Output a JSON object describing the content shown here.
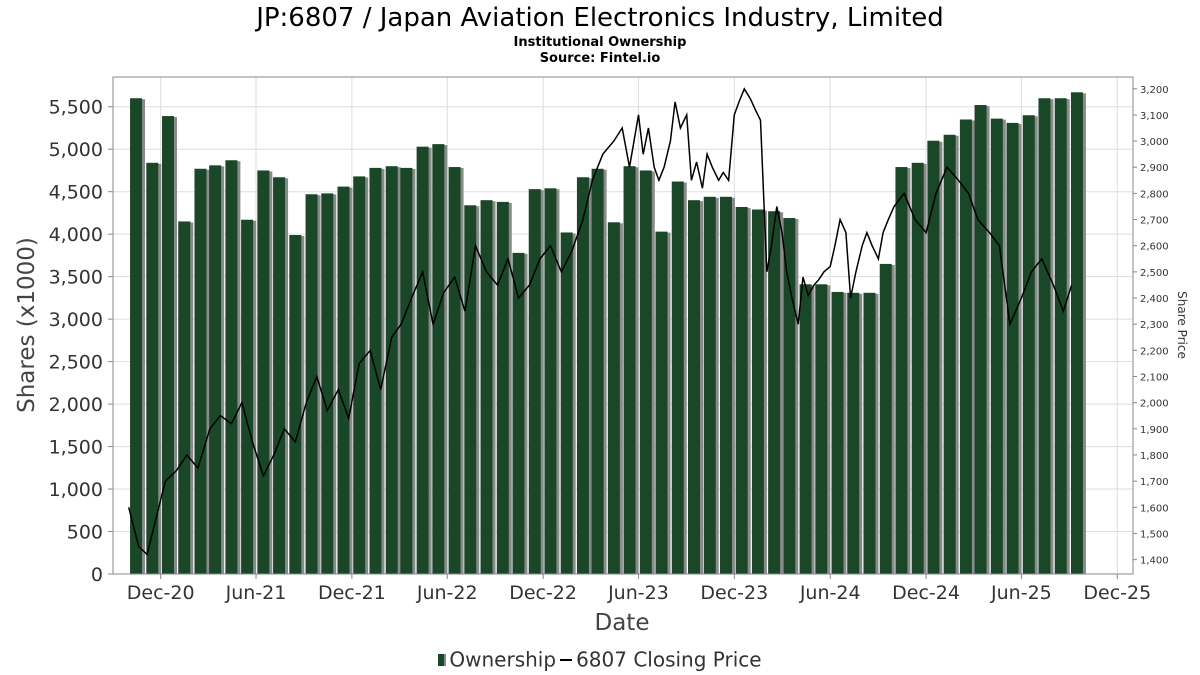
{
  "title": "JP:6807 / Japan Aviation Electronics Industry, Limited",
  "subtitle": "Institutional Ownership",
  "source": "Source: Fintel.io",
  "legend": {
    "ownership": "Ownership",
    "price": "6807 Closing Price"
  },
  "colors": {
    "bar": "#1a4728",
    "bar_shadow": "#8a8a8a",
    "line": "#000000",
    "grid": "#dddddd"
  },
  "chart_data": {
    "type": "bar",
    "xlabel": "Date",
    "ylabel": "Shares (x1000)",
    "y2label": "Share Price",
    "ylim": [
      0,
      5850
    ],
    "y2lim": [
      1345,
      3245
    ],
    "xlim": [
      "2020-09-01",
      "2025-12-31"
    ],
    "grid": true,
    "legend_position": "bottom",
    "yticks": [
      0,
      500,
      1000,
      1500,
      2000,
      2500,
      3000,
      3500,
      4000,
      4500,
      5000,
      5500
    ],
    "ytick_labels": [
      "0",
      "500",
      "1,000",
      "1,500",
      "2,000",
      "2,500",
      "3,000",
      "3,500",
      "4,000",
      "4,500",
      "5,000",
      "5,500"
    ],
    "y2ticks": [
      1400,
      1500,
      1600,
      1700,
      1800,
      1900,
      2000,
      2100,
      2200,
      2300,
      2400,
      2500,
      2600,
      2700,
      2800,
      2900,
      3000,
      3100,
      3200
    ],
    "y2tick_labels": [
      "1,400",
      "1,500",
      "1,600",
      "1,700",
      "1,800",
      "1,900",
      "2,000",
      "2,100",
      "2,200",
      "2,300",
      "2,400",
      "2,500",
      "2,600",
      "2,700",
      "2,800",
      "2,900",
      "3,000",
      "3,100",
      "3,200"
    ],
    "xticks": [
      "2020-12-01",
      "2021-06-01",
      "2021-12-01",
      "2022-06-01",
      "2022-12-01",
      "2023-06-01",
      "2023-12-01",
      "2024-06-01",
      "2024-12-01",
      "2025-06-01",
      "2025-12-01"
    ],
    "xtick_labels": [
      "Dec-20",
      "Jun-21",
      "Dec-21",
      "Jun-22",
      "Dec-22",
      "Jun-23",
      "Dec-23",
      "Jun-24",
      "Dec-24",
      "Jun-25",
      "Dec-25"
    ],
    "series": [
      {
        "name": "Ownership",
        "kind": "bar",
        "axis": "left",
        "x": [
          "2020-10-15",
          "2020-11-15",
          "2020-12-15",
          "2021-01-15",
          "2021-02-15",
          "2021-03-15",
          "2021-04-15",
          "2021-05-15",
          "2021-06-15",
          "2021-07-15",
          "2021-08-15",
          "2021-09-15",
          "2021-10-15",
          "2021-11-15",
          "2021-12-15",
          "2022-01-15",
          "2022-02-15",
          "2022-03-15",
          "2022-04-15",
          "2022-05-15",
          "2022-06-15",
          "2022-07-15",
          "2022-08-15",
          "2022-09-15",
          "2022-10-15",
          "2022-11-15",
          "2022-12-15",
          "2023-01-15",
          "2023-02-15",
          "2023-03-15",
          "2023-04-15",
          "2023-05-15",
          "2023-06-15",
          "2023-07-15",
          "2023-08-15",
          "2023-09-15",
          "2023-10-15",
          "2023-11-15",
          "2023-12-15",
          "2024-01-15",
          "2024-02-15",
          "2024-03-15",
          "2024-04-15",
          "2024-05-15",
          "2024-06-15",
          "2024-07-15",
          "2024-08-15",
          "2024-09-15",
          "2024-10-15",
          "2024-11-15",
          "2024-12-15",
          "2025-01-15",
          "2025-02-15",
          "2025-03-15",
          "2025-04-15",
          "2025-05-15",
          "2025-06-15",
          "2025-07-15",
          "2025-08-15",
          "2025-09-15"
        ],
        "values": [
          5600,
          4840,
          5390,
          4150,
          4770,
          4810,
          4870,
          4170,
          4750,
          4670,
          3990,
          4470,
          4480,
          4560,
          4680,
          4780,
          4800,
          4780,
          5030,
          5060,
          4790,
          4340,
          4400,
          4380,
          3780,
          4530,
          4540,
          4020,
          4670,
          4770,
          4140,
          4800,
          4750,
          4030,
          4620,
          4400,
          4440,
          4440,
          4320,
          4290,
          4270,
          4190,
          3410,
          3410,
          3320,
          3310,
          3310,
          3650,
          4790,
          4840,
          5100,
          5170,
          5350,
          5520,
          5360,
          5310,
          5400,
          5600,
          5600,
          5670
        ]
      },
      {
        "name": "6807 Closing Price",
        "kind": "line",
        "axis": "right",
        "x": [
          "2020-10-01",
          "2020-10-20",
          "2020-11-05",
          "2020-11-25",
          "2020-12-10",
          "2020-12-31",
          "2021-01-20",
          "2021-02-10",
          "2021-03-05",
          "2021-03-25",
          "2021-04-15",
          "2021-05-05",
          "2021-05-25",
          "2021-06-15",
          "2021-07-05",
          "2021-07-25",
          "2021-08-15",
          "2021-09-05",
          "2021-09-25",
          "2021-10-15",
          "2021-11-05",
          "2021-11-25",
          "2021-12-15",
          "2022-01-05",
          "2022-01-25",
          "2022-02-15",
          "2022-03-05",
          "2022-03-25",
          "2022-04-15",
          "2022-05-05",
          "2022-05-25",
          "2022-06-15",
          "2022-07-05",
          "2022-07-25",
          "2022-08-15",
          "2022-09-05",
          "2022-09-25",
          "2022-10-15",
          "2022-11-05",
          "2022-11-25",
          "2022-12-15",
          "2023-01-05",
          "2023-01-25",
          "2023-02-15",
          "2023-03-05",
          "2023-03-25",
          "2023-04-15",
          "2023-05-01",
          "2023-05-15",
          "2023-06-01",
          "2023-06-10",
          "2023-06-20",
          "2023-07-01",
          "2023-07-10",
          "2023-07-20",
          "2023-08-01",
          "2023-08-10",
          "2023-08-20",
          "2023-09-01",
          "2023-09-10",
          "2023-09-20",
          "2023-10-01",
          "2023-10-10",
          "2023-10-20",
          "2023-11-01",
          "2023-11-10",
          "2023-11-20",
          "2023-12-01",
          "2023-12-10",
          "2023-12-20",
          "2024-01-01",
          "2024-01-10",
          "2024-01-20",
          "2024-02-01",
          "2024-02-10",
          "2024-02-20",
          "2024-03-01",
          "2024-03-10",
          "2024-03-20",
          "2024-04-01",
          "2024-04-10",
          "2024-04-20",
          "2024-05-01",
          "2024-05-10",
          "2024-05-20",
          "2024-06-01",
          "2024-06-10",
          "2024-06-20",
          "2024-07-01",
          "2024-07-10",
          "2024-07-20",
          "2024-08-01",
          "2024-08-10",
          "2024-08-20",
          "2024-09-01",
          "2024-09-10",
          "2024-09-20",
          "2024-10-01",
          "2024-10-20",
          "2024-11-10",
          "2024-12-01",
          "2024-12-20",
          "2025-01-10",
          "2025-02-01",
          "2025-02-20",
          "2025-03-10",
          "2025-04-01",
          "2025-04-20",
          "2025-05-10",
          "2025-06-01",
          "2025-06-20",
          "2025-07-10",
          "2025-08-01",
          "2025-08-20",
          "2025-09-05"
        ],
        "values": [
          1600,
          1450,
          1420,
          1580,
          1700,
          1740,
          1800,
          1750,
          1900,
          1950,
          1920,
          2000,
          1850,
          1720,
          1800,
          1900,
          1850,
          2000,
          2100,
          1970,
          2050,
          1940,
          2150,
          2200,
          2050,
          2250,
          2300,
          2400,
          2500,
          2300,
          2420,
          2480,
          2350,
          2600,
          2500,
          2450,
          2550,
          2400,
          2450,
          2550,
          2600,
          2500,
          2580,
          2700,
          2850,
          2950,
          3000,
          3050,
          2900,
          3100,
          2950,
          3050,
          2900,
          2850,
          2900,
          3000,
          3150,
          3050,
          3100,
          2850,
          2920,
          2820,
          2950,
          2900,
          2850,
          2880,
          2850,
          3100,
          3150,
          3200,
          3160,
          3120,
          3080,
          2500,
          2600,
          2750,
          2650,
          2500,
          2400,
          2300,
          2480,
          2410,
          2450,
          2470,
          2500,
          2520,
          2600,
          2700,
          2650,
          2400,
          2500,
          2600,
          2650,
          2600,
          2550,
          2650,
          2700,
          2750,
          2800,
          2700,
          2650,
          2800,
          2900,
          2850,
          2800,
          2700,
          2650,
          2600,
          2300,
          2400,
          2500,
          2550,
          2450,
          2350,
          2450
        ]
      }
    ]
  }
}
